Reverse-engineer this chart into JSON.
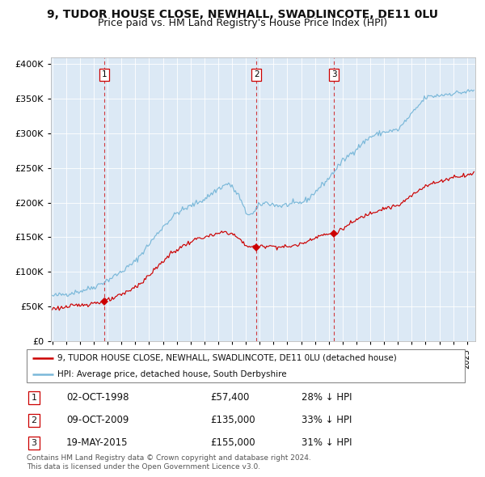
{
  "title_line1": "9, TUDOR HOUSE CLOSE, NEWHALL, SWADLINCOTE, DE11 0LU",
  "title_line2": "Price paid vs. HM Land Registry's House Price Index (HPI)",
  "legend_red": "9, TUDOR HOUSE CLOSE, NEWHALL, SWADLINCOTE, DE11 0LU (detached house)",
  "legend_blue": "HPI: Average price, detached house, South Derbyshire",
  "footer_line1": "Contains HM Land Registry data © Crown copyright and database right 2024.",
  "footer_line2": "This data is licensed under the Open Government Licence v3.0.",
  "transactions": [
    {
      "num": 1,
      "date": "02-OCT-1998",
      "price": 57400,
      "pct": "28%",
      "direction": "↓"
    },
    {
      "num": 2,
      "date": "09-OCT-2009",
      "price": 135000,
      "pct": "33%",
      "direction": "↓"
    },
    {
      "num": 3,
      "date": "19-MAY-2015",
      "price": 155000,
      "pct": "31%",
      "direction": "↓"
    }
  ],
  "transaction_dates_decimal": [
    1998.75,
    2009.77,
    2015.38
  ],
  "transaction_prices": [
    57400,
    135000,
    155000
  ],
  "hpi_color": "#7ab8d9",
  "sale_color": "#cc0000",
  "vline_color": "#cc0000",
  "plot_bg": "#dce9f5",
  "grid_color": "#ffffff",
  "fig_bg": "#ffffff",
  "ylim": [
    0,
    410000
  ],
  "xlim_start": 1994.9,
  "xlim_end": 2025.6,
  "ytick_step": 50000,
  "title_fontsize": 10,
  "subtitle_fontsize": 9
}
